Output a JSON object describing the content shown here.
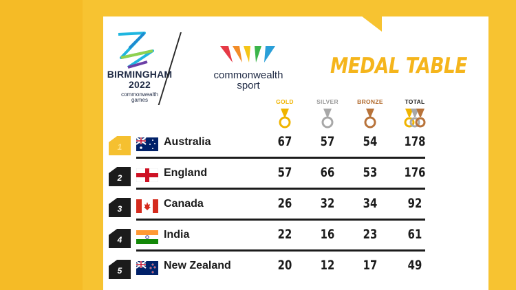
{
  "logos": {
    "birmingham": {
      "line1": "BIRMINGHAM",
      "line2": "2022",
      "sub1": "commonwealth",
      "sub2": "games"
    },
    "commonwealth_sport": {
      "line1": "commonwealth",
      "line2": "sport"
    }
  },
  "title": "MEDAL TABLE",
  "columns": [
    {
      "label": "GOLD",
      "color": "#f0b400"
    },
    {
      "label": "SILVER",
      "color": "#9a9a9a"
    },
    {
      "label": "BRONZE",
      "color": "#b0682a"
    },
    {
      "label": "TOTAL",
      "color": "#1b1b1b"
    }
  ],
  "colors": {
    "gold": "#f0b400",
    "silver": "#a8a8a8",
    "bronze": "#b8733a",
    "accent": "#f7c331"
  },
  "rows": [
    {
      "rank": "1",
      "country": "Australia",
      "flag": "australia-flag",
      "gold": "67",
      "silver": "57",
      "bronze": "54",
      "total": "178"
    },
    {
      "rank": "2",
      "country": "England",
      "flag": "england-flag",
      "gold": "57",
      "silver": "66",
      "bronze": "53",
      "total": "176"
    },
    {
      "rank": "3",
      "country": "Canada",
      "flag": "canada-flag",
      "gold": "26",
      "silver": "32",
      "bronze": "34",
      "total": "92"
    },
    {
      "rank": "4",
      "country": "India",
      "flag": "india-flag",
      "gold": "22",
      "silver": "16",
      "bronze": "23",
      "total": "61"
    },
    {
      "rank": "5",
      "country": "New Zealand",
      "flag": "new-zealand-flag",
      "gold": "20",
      "silver": "12",
      "bronze": "17",
      "total": "49"
    }
  ]
}
